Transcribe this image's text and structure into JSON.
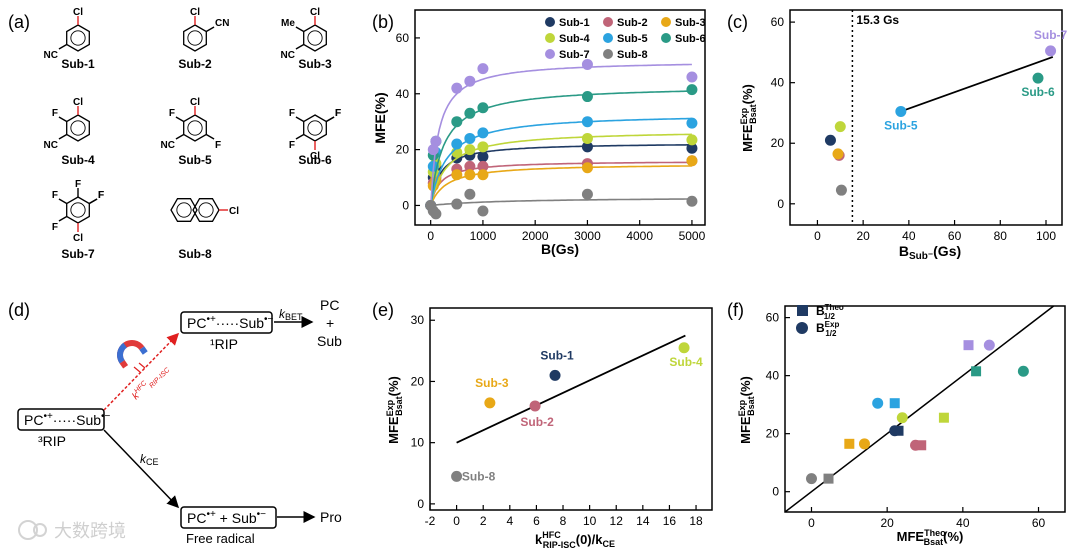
{
  "panel_labels": {
    "a": "(a)",
    "b": "(b)",
    "c": "(c)",
    "d": "(d)",
    "e": "(e)",
    "f": "(f)"
  },
  "colors": {
    "Sub-1": "#1f3a63",
    "Sub-2": "#c06478",
    "Sub-3": "#e8a817",
    "Sub-4": "#bfd63a",
    "Sub-5": "#2ba3e0",
    "Sub-6": "#2a9a86",
    "Sub-7": "#a58fe0",
    "Sub-8": "#808080",
    "axis": "#000000",
    "red": "#e02020"
  },
  "structures": [
    {
      "name": "Sub-1",
      "subs": [
        {
          "pos": "top",
          "label": "Cl",
          "bond": "red"
        },
        {
          "pos": "left",
          "label": "NC"
        }
      ]
    },
    {
      "name": "Sub-2",
      "subs": [
        {
          "pos": "top",
          "label": "Cl",
          "bond": "red"
        },
        {
          "pos": "right",
          "label": "CN"
        }
      ]
    },
    {
      "name": "Sub-3",
      "subs": [
        {
          "pos": "top",
          "label": "Cl",
          "bond": "red"
        },
        {
          "pos": "left",
          "label": "NC"
        },
        {
          "pos": "topleft",
          "label": "Me"
        }
      ]
    },
    {
      "name": "Sub-4",
      "subs": [
        {
          "pos": "top",
          "label": "Cl",
          "bond": "red"
        },
        {
          "pos": "left",
          "label": "NC"
        },
        {
          "pos": "topleft",
          "label": "F"
        }
      ]
    },
    {
      "name": "Sub-5",
      "subs": [
        {
          "pos": "top",
          "label": "Cl",
          "bond": "red"
        },
        {
          "pos": "left",
          "label": "NC"
        },
        {
          "pos": "topleft",
          "label": "F"
        },
        {
          "pos": "bottomright",
          "label": "F"
        }
      ]
    },
    {
      "name": "Sub-6",
      "subs": [
        {
          "pos": "bottom",
          "label": "Cl",
          "bond": "red"
        },
        {
          "pos": "topleft",
          "label": "F"
        },
        {
          "pos": "topright",
          "label": "F"
        },
        {
          "pos": "left",
          "label": "F"
        },
        {
          "pos": "right",
          "label": "F"
        }
      ]
    },
    {
      "name": "Sub-7",
      "subs": [
        {
          "pos": "bottom",
          "label": "Cl",
          "bond": "red"
        },
        {
          "pos": "top",
          "label": "F"
        },
        {
          "pos": "topleft",
          "label": "F"
        },
        {
          "pos": "topright",
          "label": "F"
        },
        {
          "pos": "left",
          "label": "F"
        },
        {
          "pos": "right",
          "label": "F"
        }
      ]
    },
    {
      "name": "Sub-8",
      "subs": [
        {
          "pos": "right",
          "label": "Cl",
          "bond": "red"
        }
      ],
      "naphthalene": true
    }
  ],
  "diagram": {
    "rip3_label": "³RIP",
    "rip1_label": "¹RIP",
    "pc_plus_sub": [
      "PC",
      "+",
      "Sub"
    ],
    "free_radical_label": "Free radical",
    "product_label": "Pro",
    "kbet_label": "kBET",
    "kce_label": "kCE",
    "hfc_label": "HFC",
    "kisc_label": "kRIP-ISC"
  },
  "chart_data": [
    {
      "panel": "b",
      "type": "scatter",
      "xlabel": "B(Gs)",
      "ylabel": "MFE(%)",
      "xlim": [
        -300,
        5250
      ],
      "ylim": [
        -7,
        70
      ],
      "xticks": [
        0,
        1000,
        2000,
        3000,
        4000,
        5000
      ],
      "yticks": [
        0,
        20,
        40,
        60
      ],
      "series": [
        {
          "name": "Sub-1",
          "x": [
            0,
            50,
            100,
            500,
            750,
            1000,
            3000,
            5000
          ],
          "y": [
            0,
            10,
            14,
            17,
            18,
            17.5,
            21,
            20.5
          ],
          "fit": [
            22.5,
            180
          ]
        },
        {
          "name": "Sub-2",
          "x": [
            0,
            50,
            100,
            500,
            750,
            1000,
            3000,
            5000
          ],
          "y": [
            0,
            8,
            10,
            13,
            14,
            14,
            15,
            16
          ],
          "fit": [
            16,
            180
          ]
        },
        {
          "name": "Sub-3",
          "x": [
            0,
            50,
            100,
            500,
            750,
            1000,
            3000,
            5000
          ],
          "y": [
            0,
            7,
            9,
            11,
            11,
            11,
            13.5,
            16
          ],
          "fit": [
            15,
            300
          ]
        },
        {
          "name": "Sub-4",
          "x": [
            0,
            50,
            100,
            500,
            750,
            1000,
            3000,
            5000
          ],
          "y": [
            0,
            12,
            15,
            19,
            20,
            21,
            24,
            23.5
          ],
          "fit": [
            27,
            300
          ]
        },
        {
          "name": "Sub-5",
          "x": [
            0,
            50,
            100,
            500,
            750,
            1000,
            3000,
            5000
          ],
          "y": [
            0,
            14,
            19,
            22,
            24,
            26,
            30,
            29.5
          ],
          "fit": [
            33,
            300
          ]
        },
        {
          "name": "Sub-6",
          "x": [
            0,
            50,
            100,
            500,
            750,
            1000,
            3000,
            5000
          ],
          "y": [
            0,
            18,
            23,
            30,
            33,
            35,
            39,
            41.5
          ],
          "fit": [
            43,
            250
          ]
        },
        {
          "name": "Sub-7",
          "x": [
            0,
            50,
            100,
            500,
            750,
            1000,
            3000,
            5000
          ],
          "y": [
            0,
            20,
            23,
            42,
            44.5,
            49,
            50.5,
            46
          ],
          "fit": [
            52,
            150
          ]
        },
        {
          "name": "Sub-8",
          "x": [
            0,
            50,
            100,
            500,
            750,
            1000,
            3000,
            5000
          ],
          "y": [
            0,
            -2,
            -3,
            0.5,
            4,
            -2,
            4,
            1.5
          ],
          "fit": [
            3,
            1500
          ]
        }
      ]
    },
    {
      "panel": "c",
      "type": "scatter",
      "xlabel": "B_Sub⁻(Gs)",
      "ylabel": "MFE_Bsat^Exp(%)",
      "xlim": [
        -12,
        107
      ],
      "ylim": [
        -7,
        64
      ],
      "xticks": [
        0,
        20,
        40,
        60,
        80,
        100
      ],
      "yticks": [
        0,
        20,
        40,
        60
      ],
      "annotation": "15.3 Gs",
      "vline": 15.3,
      "fit_line": {
        "x": [
          36.5,
          103
        ],
        "y": [
          30.5,
          48.5
        ]
      },
      "points": [
        {
          "name": "Sub-1",
          "x": 5.7,
          "y": 21
        },
        {
          "name": "Sub-2",
          "x": 9.5,
          "y": 16
        },
        {
          "name": "Sub-3",
          "x": 9,
          "y": 16.5
        },
        {
          "name": "Sub-4",
          "x": 10,
          "y": 25.5
        },
        {
          "name": "Sub-5",
          "x": 36.5,
          "y": 30.5
        },
        {
          "name": "Sub-6",
          "x": 96.5,
          "y": 41.5
        },
        {
          "name": "Sub-7",
          "x": 102,
          "y": 50.5
        },
        {
          "name": "Sub-8",
          "x": 10.5,
          "y": 4.5
        }
      ],
      "labels": [
        "Sub-5",
        "Sub-6",
        "Sub-7"
      ]
    },
    {
      "panel": "e",
      "type": "scatter",
      "xlabel": "k_RIP-ISC^HFC(0)/k_CE",
      "ylabel": "MFE_Bsat^Exp(%)",
      "xlim": [
        -2,
        19.2
      ],
      "ylim": [
        -1,
        32
      ],
      "xticks": [
        -2,
        0,
        2,
        4,
        6,
        8,
        10,
        12,
        14,
        16,
        18
      ],
      "yticks": [
        0,
        10,
        20,
        30
      ],
      "fit_line": {
        "x": [
          0,
          17.2
        ],
        "y": [
          10,
          27.5
        ]
      },
      "points": [
        {
          "name": "Sub-1",
          "x": 7.4,
          "y": 21
        },
        {
          "name": "Sub-2",
          "x": 5.9,
          "y": 16
        },
        {
          "name": "Sub-3",
          "x": 2.5,
          "y": 16.5
        },
        {
          "name": "Sub-4",
          "x": 17.1,
          "y": 25.5
        },
        {
          "name": "Sub-8",
          "x": 0,
          "y": 4.5
        }
      ]
    },
    {
      "panel": "f",
      "type": "scatter",
      "xlabel": "MFE_Bsat^Theo(%)",
      "ylabel": "MFE_Bsat^Exp(%)",
      "xlim": [
        -7,
        67
      ],
      "ylim": [
        -7,
        64
      ],
      "xticks": [
        0,
        20,
        40,
        60
      ],
      "yticks": [
        0,
        20,
        40,
        60
      ],
      "legend": [
        "B_1/2^Theo",
        "B_1/2^Exp"
      ],
      "diagonal": true,
      "squares": [
        {
          "name": "Sub-1",
          "x": 23,
          "y": 21
        },
        {
          "name": "Sub-2",
          "x": 29,
          "y": 16
        },
        {
          "name": "Sub-3",
          "x": 10,
          "y": 16.5
        },
        {
          "name": "Sub-4",
          "x": 35,
          "y": 25.5
        },
        {
          "name": "Sub-5",
          "x": 22,
          "y": 30.5
        },
        {
          "name": "Sub-6",
          "x": 43.5,
          "y": 41.5
        },
        {
          "name": "Sub-7",
          "x": 41.5,
          "y": 50.5
        },
        {
          "name": "Sub-8",
          "x": 4.5,
          "y": 4.5
        }
      ],
      "circles": [
        {
          "name": "Sub-1",
          "x": 22,
          "y": 21
        },
        {
          "name": "Sub-2",
          "x": 27.5,
          "y": 16
        },
        {
          "name": "Sub-3",
          "x": 14,
          "y": 16.5
        },
        {
          "name": "Sub-4",
          "x": 24,
          "y": 25.5
        },
        {
          "name": "Sub-5",
          "x": 17.5,
          "y": 30.5
        },
        {
          "name": "Sub-6",
          "x": 56,
          "y": 41.5
        },
        {
          "name": "Sub-7",
          "x": 47,
          "y": 50.5
        },
        {
          "name": "Sub-8",
          "x": 0,
          "y": 4.5
        }
      ]
    }
  ],
  "watermark": "大数跨境"
}
